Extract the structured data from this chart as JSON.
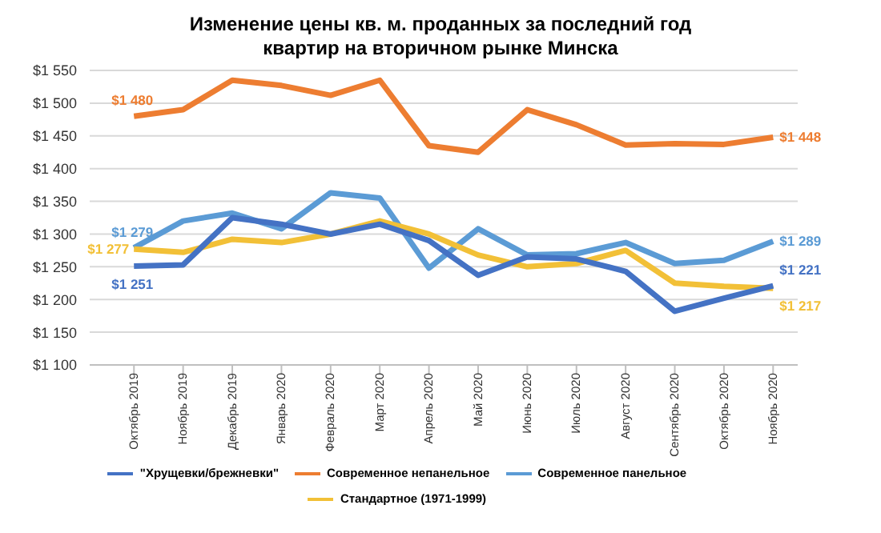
{
  "chart_data": {
    "type": "line",
    "title": "Изменение цены кв. м. проданных за последний год квартир на вторичном рынке Минска",
    "categories": [
      "Октябрь 2019",
      "Ноябрь 2019",
      "Декабрь 2019",
      "Январь 2020",
      "Февраль 2020",
      "Март 2020",
      "Апрель 2020",
      "Май 2020",
      "Июнь 2020",
      "Июль 2020",
      "Август 2020",
      "Сентябрь 2020",
      "Октябрь 2020",
      "Ноябрь 2020"
    ],
    "series": [
      {
        "name": "Современное панельное",
        "color": "#5b9bd5",
        "values": [
          1279,
          1320,
          1332,
          1308,
          1363,
          1355,
          1248,
          1308,
          1268,
          1270,
          1287,
          1255,
          1260,
          1289
        ],
        "value_labels": [
          "$1 279",
          null,
          null,
          null,
          null,
          null,
          null,
          null,
          null,
          null,
          null,
          null,
          null,
          "$1 289"
        ]
      },
      {
        "name": "Современное непанельное",
        "color": "#ed7d31",
        "values": [
          1480,
          1490,
          1535,
          1527,
          1512,
          1535,
          1435,
          1425,
          1490,
          1467,
          1436,
          1438,
          1437,
          1448
        ],
        "value_labels": [
          "$1 480",
          null,
          null,
          null,
          null,
          null,
          null,
          null,
          null,
          null,
          null,
          null,
          null,
          "$1 448"
        ]
      },
      {
        "name": "Стандартное (1971-1999)",
        "color": "#f2c037",
        "values": [
          1277,
          1272,
          1292,
          1287,
          1300,
          1320,
          1300,
          1268,
          1250,
          1255,
          1275,
          1225,
          1220,
          1217
        ],
        "value_labels": [
          "$1 277",
          null,
          null,
          null,
          null,
          null,
          null,
          null,
          null,
          null,
          null,
          null,
          null,
          "$1 217"
        ]
      },
      {
        "name": "\"Хрущевки/брежневки\"",
        "color": "#4472c4",
        "values": [
          1251,
          1253,
          1325,
          1315,
          1300,
          1315,
          1290,
          1237,
          1265,
          1262,
          1243,
          1182,
          1202,
          1221
        ],
        "value_labels": [
          "$1 251",
          null,
          null,
          null,
          null,
          null,
          null,
          null,
          null,
          null,
          null,
          null,
          null,
          "$1 221"
        ]
      }
    ],
    "ylim": [
      1100,
      1550
    ],
    "yticks": [
      {
        "value": 1100,
        "label": "$1 100"
      },
      {
        "value": 1150,
        "label": "$1 150"
      },
      {
        "value": 1200,
        "label": "$1 200"
      },
      {
        "value": 1250,
        "label": "$1 250"
      },
      {
        "value": 1300,
        "label": "$1 300"
      },
      {
        "value": 1350,
        "label": "$1 350"
      },
      {
        "value": 1400,
        "label": "$1 400"
      },
      {
        "value": 1450,
        "label": "$1 450"
      },
      {
        "value": 1500,
        "label": "$1 500"
      },
      {
        "value": 1550,
        "label": "$1 550"
      }
    ],
    "grid": "y",
    "legend": "bottom"
  }
}
